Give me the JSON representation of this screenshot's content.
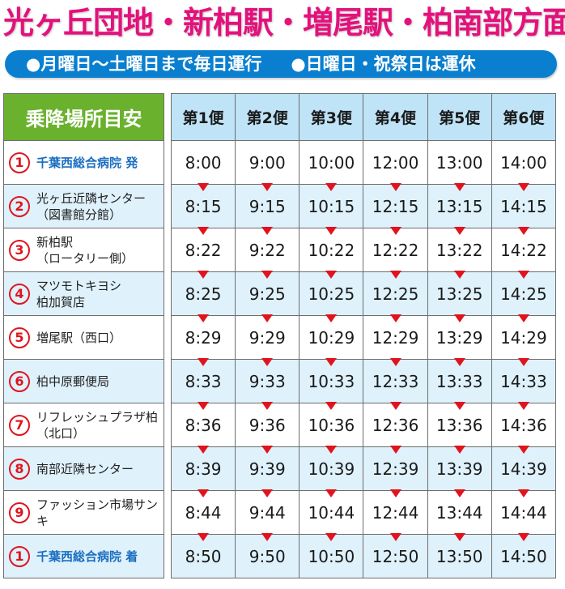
{
  "title": "光ヶ丘団地・新柏駅・増尾駅・柏南部方面",
  "banner": {
    "item1": "●月曜日〜土曜日まで毎日運行",
    "item2": "●日曜日・祝祭日は運休"
  },
  "colors": {
    "title": "#e4117c",
    "banner": "#0a7fcf",
    "stop_header": "#6ab12d",
    "trip_header": "#bfe3f7",
    "alt_row": "#dff1fb",
    "arrow": "#e0141e",
    "terminal_text": "#1a6ec0"
  },
  "table": {
    "stop_header": "乗降場所目安",
    "trip_headers": [
      "第1便",
      "第2便",
      "第3便",
      "第4便",
      "第5便",
      "第6便"
    ],
    "rows": [
      {
        "num": "1",
        "stop": "千葉西総合病院 発",
        "times": [
          "8:00",
          "9:00",
          "10:00",
          "12:00",
          "13:00",
          "14:00"
        ]
      },
      {
        "num": "2",
        "stop": "光ヶ丘近隣センター\n（図書館分館）",
        "times": [
          "8:15",
          "9:15",
          "10:15",
          "12:15",
          "13:15",
          "14:15"
        ]
      },
      {
        "num": "3",
        "stop": "新柏駅\n（ロータリー側）",
        "times": [
          "8:22",
          "9:22",
          "10:22",
          "12:22",
          "13:22",
          "14:22"
        ]
      },
      {
        "num": "4",
        "stop": "マツモトキヨシ\n柏加賀店",
        "times": [
          "8:25",
          "9:25",
          "10:25",
          "12:25",
          "13:25",
          "14:25"
        ]
      },
      {
        "num": "5",
        "stop": "増尾駅（西口）",
        "times": [
          "8:29",
          "9:29",
          "10:29",
          "12:29",
          "13:29",
          "14:29"
        ]
      },
      {
        "num": "6",
        "stop": "柏中原郵便局",
        "times": [
          "8:33",
          "9:33",
          "10:33",
          "12:33",
          "13:33",
          "14:33"
        ]
      },
      {
        "num": "7",
        "stop": "リフレッシュプラザ柏\n（北口）",
        "times": [
          "8:36",
          "9:36",
          "10:36",
          "12:36",
          "13:36",
          "14:36"
        ]
      },
      {
        "num": "8",
        "stop": "南部近隣センター",
        "times": [
          "8:39",
          "9:39",
          "10:39",
          "12:39",
          "13:39",
          "14:39"
        ]
      },
      {
        "num": "9",
        "stop": "ファッション市場サンキ",
        "times": [
          "8:44",
          "9:44",
          "10:44",
          "12:44",
          "13:44",
          "14:44"
        ]
      },
      {
        "num": "1",
        "stop": "千葉西総合病院 着",
        "times": [
          "8:50",
          "9:50",
          "10:50",
          "12:50",
          "13:50",
          "14:50"
        ]
      }
    ]
  }
}
